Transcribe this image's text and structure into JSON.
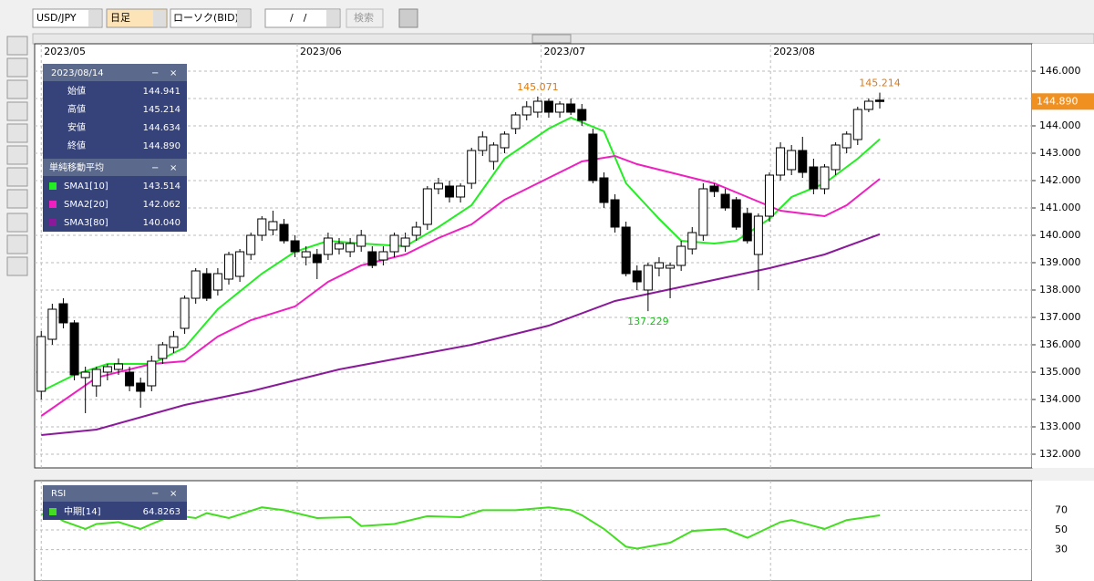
{
  "toolbar": {
    "symbol": "USD/JPY",
    "period": "日足",
    "chart_kind": "ローソク(BID)",
    "date": "/　/",
    "search": "検索"
  },
  "info_panel": {
    "date": "2023/08/14",
    "rows": [
      {
        "label": "始値",
        "value": "144.941"
      },
      {
        "label": "高値",
        "value": "145.214"
      },
      {
        "label": "安値",
        "value": "144.634"
      },
      {
        "label": "終値",
        "value": "144.890"
      }
    ],
    "sma_title": "単純移動平均"
  },
  "chart_data": [
    {
      "type": "candlestick",
      "xlim": [
        -0.6,
        89.8
      ],
      "xticks": [
        {
          "value": 0,
          "label": "2023/05"
        },
        {
          "value": 23.2,
          "label": "2023/06"
        },
        {
          "value": 45.3,
          "label": "2023/07"
        },
        {
          "value": 66.1,
          "label": "2023/08"
        }
      ],
      "ylim": [
        131.5,
        147
      ],
      "yticks": [
        {
          "value": 132,
          "label": "132.000"
        },
        {
          "value": 133,
          "label": "133.000"
        },
        {
          "value": 134,
          "label": "134.000"
        },
        {
          "value": 135,
          "label": "135.000"
        },
        {
          "value": 136,
          "label": "136.000"
        },
        {
          "value": 137,
          "label": "137.000"
        },
        {
          "value": 138,
          "label": "138.000"
        },
        {
          "value": 139,
          "label": "139.000"
        },
        {
          "value": 140,
          "label": "140.000"
        },
        {
          "value": 141,
          "label": "141.000"
        },
        {
          "value": 142,
          "label": "142.000"
        },
        {
          "value": 143,
          "label": "143.000"
        },
        {
          "value": 144,
          "label": "144.000"
        },
        {
          "value": 145,
          "label": "145.000"
        },
        {
          "value": 146,
          "label": "146.000"
        }
      ],
      "grid": true,
      "values": [
        [
          134.3,
          136.5,
          134.0,
          136.3
        ],
        [
          136.2,
          137.5,
          136.0,
          137.3
        ],
        [
          137.5,
          137.7,
          136.6,
          136.8
        ],
        [
          136.8,
          136.9,
          134.7,
          134.9
        ],
        [
          134.8,
          135.2,
          133.5,
          135.0
        ],
        [
          134.5,
          135.2,
          134.1,
          135.1
        ],
        [
          135.0,
          135.3,
          134.7,
          135.2
        ],
        [
          135.1,
          135.5,
          134.9,
          135.3
        ],
        [
          135.0,
          135.2,
          134.3,
          134.5
        ],
        [
          134.6,
          134.8,
          133.7,
          134.3
        ],
        [
          134.5,
          135.6,
          134.3,
          135.4
        ],
        [
          135.5,
          136.1,
          135.3,
          136.0
        ],
        [
          135.9,
          136.5,
          135.7,
          136.3
        ],
        [
          136.6,
          137.8,
          136.4,
          137.7
        ],
        [
          137.7,
          138.8,
          137.5,
          138.7
        ],
        [
          138.6,
          138.8,
          137.6,
          137.7
        ],
        [
          138.0,
          138.8,
          137.8,
          138.6
        ],
        [
          138.4,
          139.4,
          138.2,
          139.3
        ],
        [
          138.5,
          139.5,
          138.3,
          139.4
        ],
        [
          139.3,
          140.1,
          139.1,
          140.0
        ],
        [
          140.0,
          140.7,
          139.8,
          140.6
        ],
        [
          140.2,
          140.9,
          140.0,
          140.5
        ],
        [
          140.4,
          140.6,
          139.7,
          139.8
        ],
        [
          139.8,
          140.0,
          139.2,
          139.4
        ],
        [
          139.2,
          139.6,
          138.9,
          139.4
        ],
        [
          139.3,
          139.5,
          138.4,
          139.0
        ],
        [
          139.3,
          140.1,
          139.1,
          139.9
        ],
        [
          139.5,
          139.9,
          139.3,
          139.7
        ],
        [
          139.4,
          139.9,
          139.2,
          139.7
        ],
        [
          139.6,
          140.2,
          139.4,
          140.0
        ],
        [
          139.4,
          139.6,
          138.8,
          138.9
        ],
        [
          139.1,
          139.6,
          138.9,
          139.4
        ],
        [
          139.4,
          140.1,
          139.2,
          140.0
        ],
        [
          139.6,
          140.1,
          139.4,
          139.9
        ],
        [
          140.0,
          140.5,
          139.8,
          140.3
        ],
        [
          140.4,
          141.8,
          140.2,
          141.7
        ],
        [
          141.7,
          142.1,
          141.5,
          141.9
        ],
        [
          141.8,
          142.0,
          141.2,
          141.4
        ],
        [
          141.4,
          141.9,
          141.2,
          141.8
        ],
        [
          141.9,
          143.2,
          141.7,
          143.1
        ],
        [
          143.1,
          143.8,
          142.9,
          143.6
        ],
        [
          142.7,
          143.4,
          142.4,
          143.3
        ],
        [
          143.2,
          143.8,
          143.0,
          143.7
        ],
        [
          143.9,
          144.5,
          143.7,
          144.4
        ],
        [
          144.4,
          144.9,
          144.2,
          144.7
        ],
        [
          144.5,
          145.071,
          144.3,
          144.9
        ],
        [
          144.9,
          145.0,
          144.3,
          144.5
        ],
        [
          144.5,
          144.9,
          144.3,
          144.8
        ],
        [
          144.8,
          145.0,
          144.4,
          144.5
        ],
        [
          144.6,
          144.8,
          144.0,
          144.2
        ],
        [
          143.7,
          143.9,
          141.9,
          142.0
        ],
        [
          142.1,
          142.3,
          141.0,
          141.2
        ],
        [
          141.3,
          141.5,
          140.1,
          140.3
        ],
        [
          140.3,
          140.5,
          138.5,
          138.6
        ],
        [
          138.7,
          138.9,
          138.0,
          138.3
        ],
        [
          138.0,
          139.0,
          137.229,
          138.9
        ],
        [
          138.8,
          139.2,
          138.5,
          139.0
        ],
        [
          138.8,
          139.0,
          137.7,
          138.9
        ],
        [
          138.9,
          139.8,
          138.7,
          139.6
        ],
        [
          139.5,
          140.3,
          139.3,
          140.1
        ],
        [
          140.0,
          141.9,
          139.8,
          141.7
        ],
        [
          141.8,
          141.9,
          141.4,
          141.6
        ],
        [
          141.5,
          141.7,
          140.9,
          141.0
        ],
        [
          141.3,
          141.4,
          140.2,
          140.3
        ],
        [
          140.8,
          141.0,
          139.7,
          139.8
        ],
        [
          139.3,
          140.8,
          138.0,
          140.7
        ],
        [
          140.7,
          142.3,
          140.5,
          142.2
        ],
        [
          142.2,
          143.4,
          142.0,
          143.2
        ],
        [
          142.4,
          143.3,
          142.2,
          143.1
        ],
        [
          143.1,
          143.6,
          142.1,
          142.3
        ],
        [
          142.5,
          142.8,
          141.5,
          141.7
        ],
        [
          141.7,
          142.6,
          141.5,
          142.5
        ],
        [
          142.4,
          143.4,
          142.2,
          143.3
        ],
        [
          143.2,
          143.8,
          143.0,
          143.7
        ],
        [
          143.5,
          144.7,
          143.3,
          144.6
        ],
        [
          144.6,
          145.0,
          144.5,
          144.9
        ],
        [
          144.941,
          145.214,
          144.634,
          144.89
        ]
      ],
      "series": [
        {
          "name": "SMA1[10]",
          "color": "#22ee22",
          "legend_value": "143.514",
          "x": [
            0,
            3,
            6,
            10,
            13,
            16,
            20,
            23,
            26,
            29,
            33,
            36,
            39,
            42,
            46,
            48,
            51,
            53,
            56,
            58,
            61,
            63,
            66,
            68,
            71,
            74,
            76
          ],
          "values": [
            134.3,
            134.9,
            135.3,
            135.3,
            135.9,
            137.3,
            138.6,
            139.4,
            139.8,
            139.7,
            139.6,
            140.3,
            141.1,
            142.8,
            143.9,
            144.3,
            143.8,
            141.9,
            140.6,
            139.8,
            139.7,
            139.8,
            140.6,
            141.4,
            141.9,
            142.8,
            143.514
          ]
        },
        {
          "name": "SMA2[20]",
          "color": "#f020c0",
          "legend_value": "142.062",
          "x": [
            0,
            5,
            10,
            13,
            16,
            19,
            23,
            26,
            29,
            33,
            36,
            39,
            42,
            46,
            49,
            52,
            54,
            57,
            61,
            64,
            67,
            71,
            73,
            76
          ],
          "values": [
            133.4,
            134.8,
            135.3,
            135.4,
            136.3,
            136.9,
            137.4,
            138.3,
            138.9,
            139.3,
            139.9,
            140.4,
            141.3,
            142.1,
            142.7,
            142.9,
            142.6,
            142.3,
            141.9,
            141.4,
            140.9,
            140.7,
            141.1,
            142.062
          ]
        },
        {
          "name": "SMA3[80]",
          "color": "#8a1a9a",
          "legend_value": "140.040",
          "x": [
            0,
            5,
            13,
            19,
            27,
            39,
            46,
            52,
            59,
            66,
            71,
            76
          ],
          "values": [
            132.7,
            132.9,
            133.8,
            134.3,
            135.1,
            136.0,
            136.7,
            137.6,
            138.2,
            138.8,
            139.3,
            140.04
          ]
        }
      ],
      "annotations": [
        {
          "text": "145.071",
          "x": 45,
          "y": 145.071,
          "color": "#e07a10",
          "position": "above"
        },
        {
          "text": "145.214",
          "x": 76,
          "y": 145.214,
          "color": "#e07a10",
          "position": "above"
        },
        {
          "text": "137.229",
          "x": 55,
          "y": 137.229,
          "color": "#22bb22",
          "position": "below"
        }
      ],
      "price_tag": {
        "label": "144.890",
        "value": 144.89,
        "color": "#f09020"
      }
    },
    {
      "type": "line",
      "title": "RSI",
      "xlim": [
        -0.6,
        89.8
      ],
      "ylim": [
        0,
        100
      ],
      "yticks": [
        70,
        50,
        30
      ],
      "series": [
        {
          "name": "中期[14]",
          "color": "#44dd22",
          "legend_value": "64.8263",
          "x": [
            0,
            1,
            2,
            4,
            5,
            7,
            9,
            10,
            12,
            14,
            15,
            17,
            20,
            22,
            25,
            28,
            29,
            32,
            35,
            38,
            40,
            43,
            46,
            48,
            49,
            51,
            53,
            54,
            57,
            59,
            62,
            64,
            67,
            68,
            71,
            73,
            76
          ],
          "values": [
            66,
            66,
            59,
            51,
            56,
            58,
            51,
            56,
            65,
            62,
            67,
            62,
            73,
            70,
            62,
            63,
            54,
            56,
            64,
            63,
            70,
            70,
            73,
            70,
            65,
            51,
            33,
            31,
            37,
            49,
            51,
            42,
            58,
            60,
            51,
            60,
            64.8263
          ]
        }
      ]
    }
  ]
}
